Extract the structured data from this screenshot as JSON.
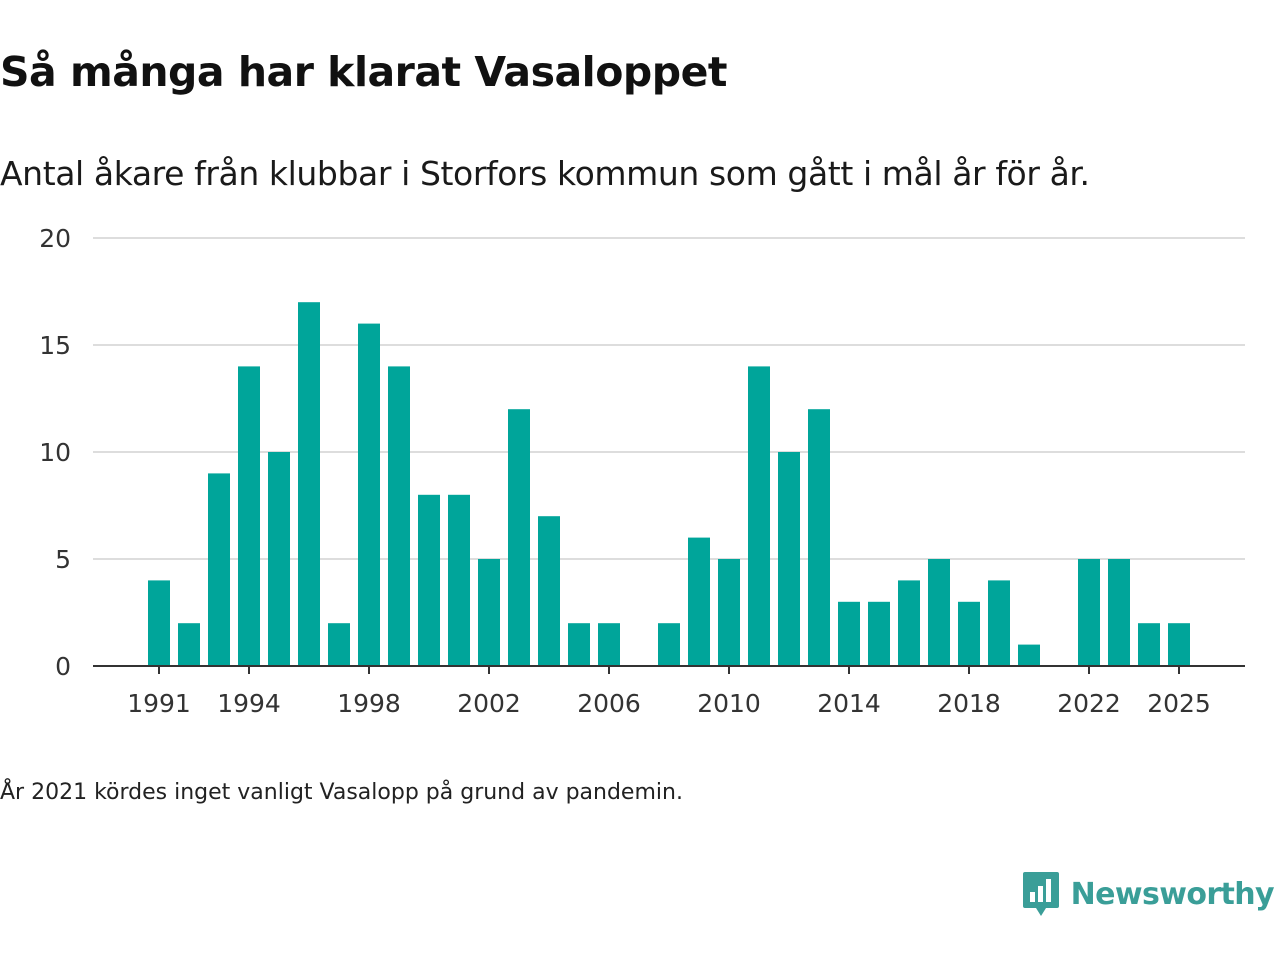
{
  "title": "Så många har klarat Vasaloppet",
  "subtitle": "Antal åkare från klubbar i Storfors kommun som gått i mål år för år.",
  "note": "År 2021 kördes inget vanligt Vasalopp på grund av pandemin.",
  "brand": {
    "name": "Newsworthy",
    "icon": "newsworthy-logo-icon",
    "color": "#3a9e98"
  },
  "colors": {
    "bar": "#00a59a",
    "grid": "#dddddd",
    "axis": "#333333"
  },
  "chart_data": {
    "type": "bar",
    "title": "Så många har klarat Vasaloppet",
    "xlabel": "",
    "ylabel": "",
    "ylim": [
      0,
      20
    ],
    "yticks": [
      0,
      5,
      10,
      15,
      20
    ],
    "xticks": [
      "1991",
      "1994",
      "1998",
      "2002",
      "2006",
      "2010",
      "2014",
      "2018",
      "2022",
      "2025"
    ],
    "grid": true,
    "categories": [
      "1991",
      "1992",
      "1993",
      "1994",
      "1995",
      "1996",
      "1997",
      "1998",
      "1999",
      "2000",
      "2001",
      "2002",
      "2003",
      "2004",
      "2005",
      "2006",
      "2007",
      "2008",
      "2009",
      "2010",
      "2011",
      "2012",
      "2013",
      "2014",
      "2015",
      "2016",
      "2017",
      "2018",
      "2019",
      "2020",
      "2021",
      "2022",
      "2023",
      "2024",
      "2025"
    ],
    "values": [
      4,
      2,
      9,
      14,
      10,
      17,
      2,
      16,
      14,
      8,
      8,
      5,
      12,
      7,
      2,
      2,
      0,
      2,
      6,
      5,
      14,
      10,
      12,
      3,
      3,
      4,
      5,
      3,
      4,
      1,
      0,
      5,
      5,
      2,
      2
    ]
  }
}
